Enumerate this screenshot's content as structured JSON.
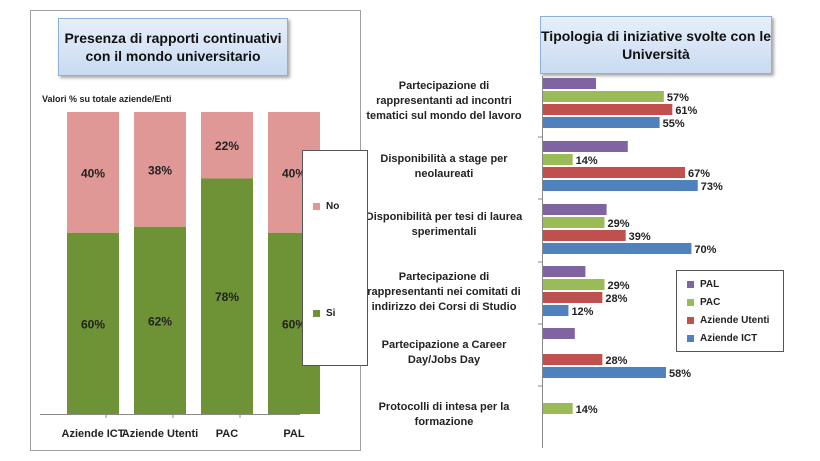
{
  "left": {
    "title": "Presenza di rapporti continuativi con il mondo universitario",
    "subtitle": "Valori % su totale  aziende/Enti",
    "legend": [
      {
        "label": "No",
        "color": "#e09896"
      },
      {
        "label": "Si",
        "color": "#6e9236"
      }
    ]
  },
  "right": {
    "title": "Tipologia di iniziative svolte con le Università",
    "legend": [
      {
        "label": "PAL",
        "color": "#8064a2"
      },
      {
        "label": "PAC",
        "color": "#9bbb59"
      },
      {
        "label": "Aziende Utenti",
        "color": "#c0504d"
      },
      {
        "label": "Aziende ICT",
        "color": "#4f81bd"
      }
    ]
  },
  "chart_data": [
    {
      "type": "bar",
      "stacked": true,
      "title": "Presenza di rapporti continuativi con il mondo universitario",
      "categories": [
        "Aziende ICT",
        "Aziende Utenti",
        "PAC",
        "PAL"
      ],
      "series": [
        {
          "name": "Si",
          "values": [
            60,
            62,
            78,
            60
          ],
          "labels": [
            "60%",
            "62%",
            "78%",
            "60%"
          ],
          "color": "#6e9236"
        },
        {
          "name": "No",
          "values": [
            40,
            38,
            22,
            40
          ],
          "labels": [
            "40%",
            "38%",
            "22%",
            "40%"
          ],
          "color": "#e09896"
        }
      ],
      "ylim": [
        0,
        100
      ],
      "grid": false,
      "legend_position": "right"
    },
    {
      "type": "bar",
      "orientation": "horizontal",
      "title": "Tipologia di iniziative svolte con le Università",
      "categories": [
        "Partecipazione di rappresentanti ad incontri tematici sul mondo del lavoro",
        "Disponibilità a stage per neolaureati",
        "Disponibilità per tesi di laurea sperimentali",
        "Partecipazione di rappresentanti nei comitati di indirizzo dei Corsi di Studio",
        "Partecipazione a Career Day/Jobs Day",
        "Protocolli di intesa per la formazione"
      ],
      "category_lines": [
        [
          "Partecipazione di",
          "rappresentanti ad incontri",
          "tematici sul mondo del lavoro"
        ],
        [
          "Disponibilità a stage per",
          "neolaureati"
        ],
        [
          "Disponibilità per tesi di laurea",
          "sperimentali"
        ],
        [
          "Partecipazione di",
          "rappresentanti nei comitati di",
          "indirizzo dei Corsi di Studio"
        ],
        [
          "Partecipazione a Career",
          "Day/Jobs Day"
        ],
        [
          "Protocolli di intesa per la",
          "formazione"
        ]
      ],
      "series": [
        {
          "name": "PAL",
          "color": "#8064a2",
          "values": [
            25,
            40,
            30,
            20,
            15,
            null
          ],
          "labels": [
            "",
            "",
            "",
            "",
            "",
            ""
          ]
        },
        {
          "name": "PAC",
          "color": "#9bbb59",
          "values": [
            57,
            14,
            29,
            29,
            null,
            14
          ],
          "labels": [
            "57%",
            "14%",
            "29%",
            "29%",
            "",
            "14%"
          ]
        },
        {
          "name": "Aziende Utenti",
          "color": "#c0504d",
          "values": [
            61,
            67,
            39,
            28,
            28,
            null
          ],
          "labels": [
            "61%",
            "67%",
            "39%",
            "28%",
            "28%",
            ""
          ]
        },
        {
          "name": "Aziende ICT",
          "color": "#4f81bd",
          "values": [
            55,
            73,
            70,
            12,
            58,
            null
          ],
          "labels": [
            "55%",
            "73%",
            "70%",
            "12%",
            "58%",
            ""
          ]
        }
      ],
      "xlim": [
        0,
        100
      ],
      "grid": false,
      "legend_position": "right"
    }
  ]
}
